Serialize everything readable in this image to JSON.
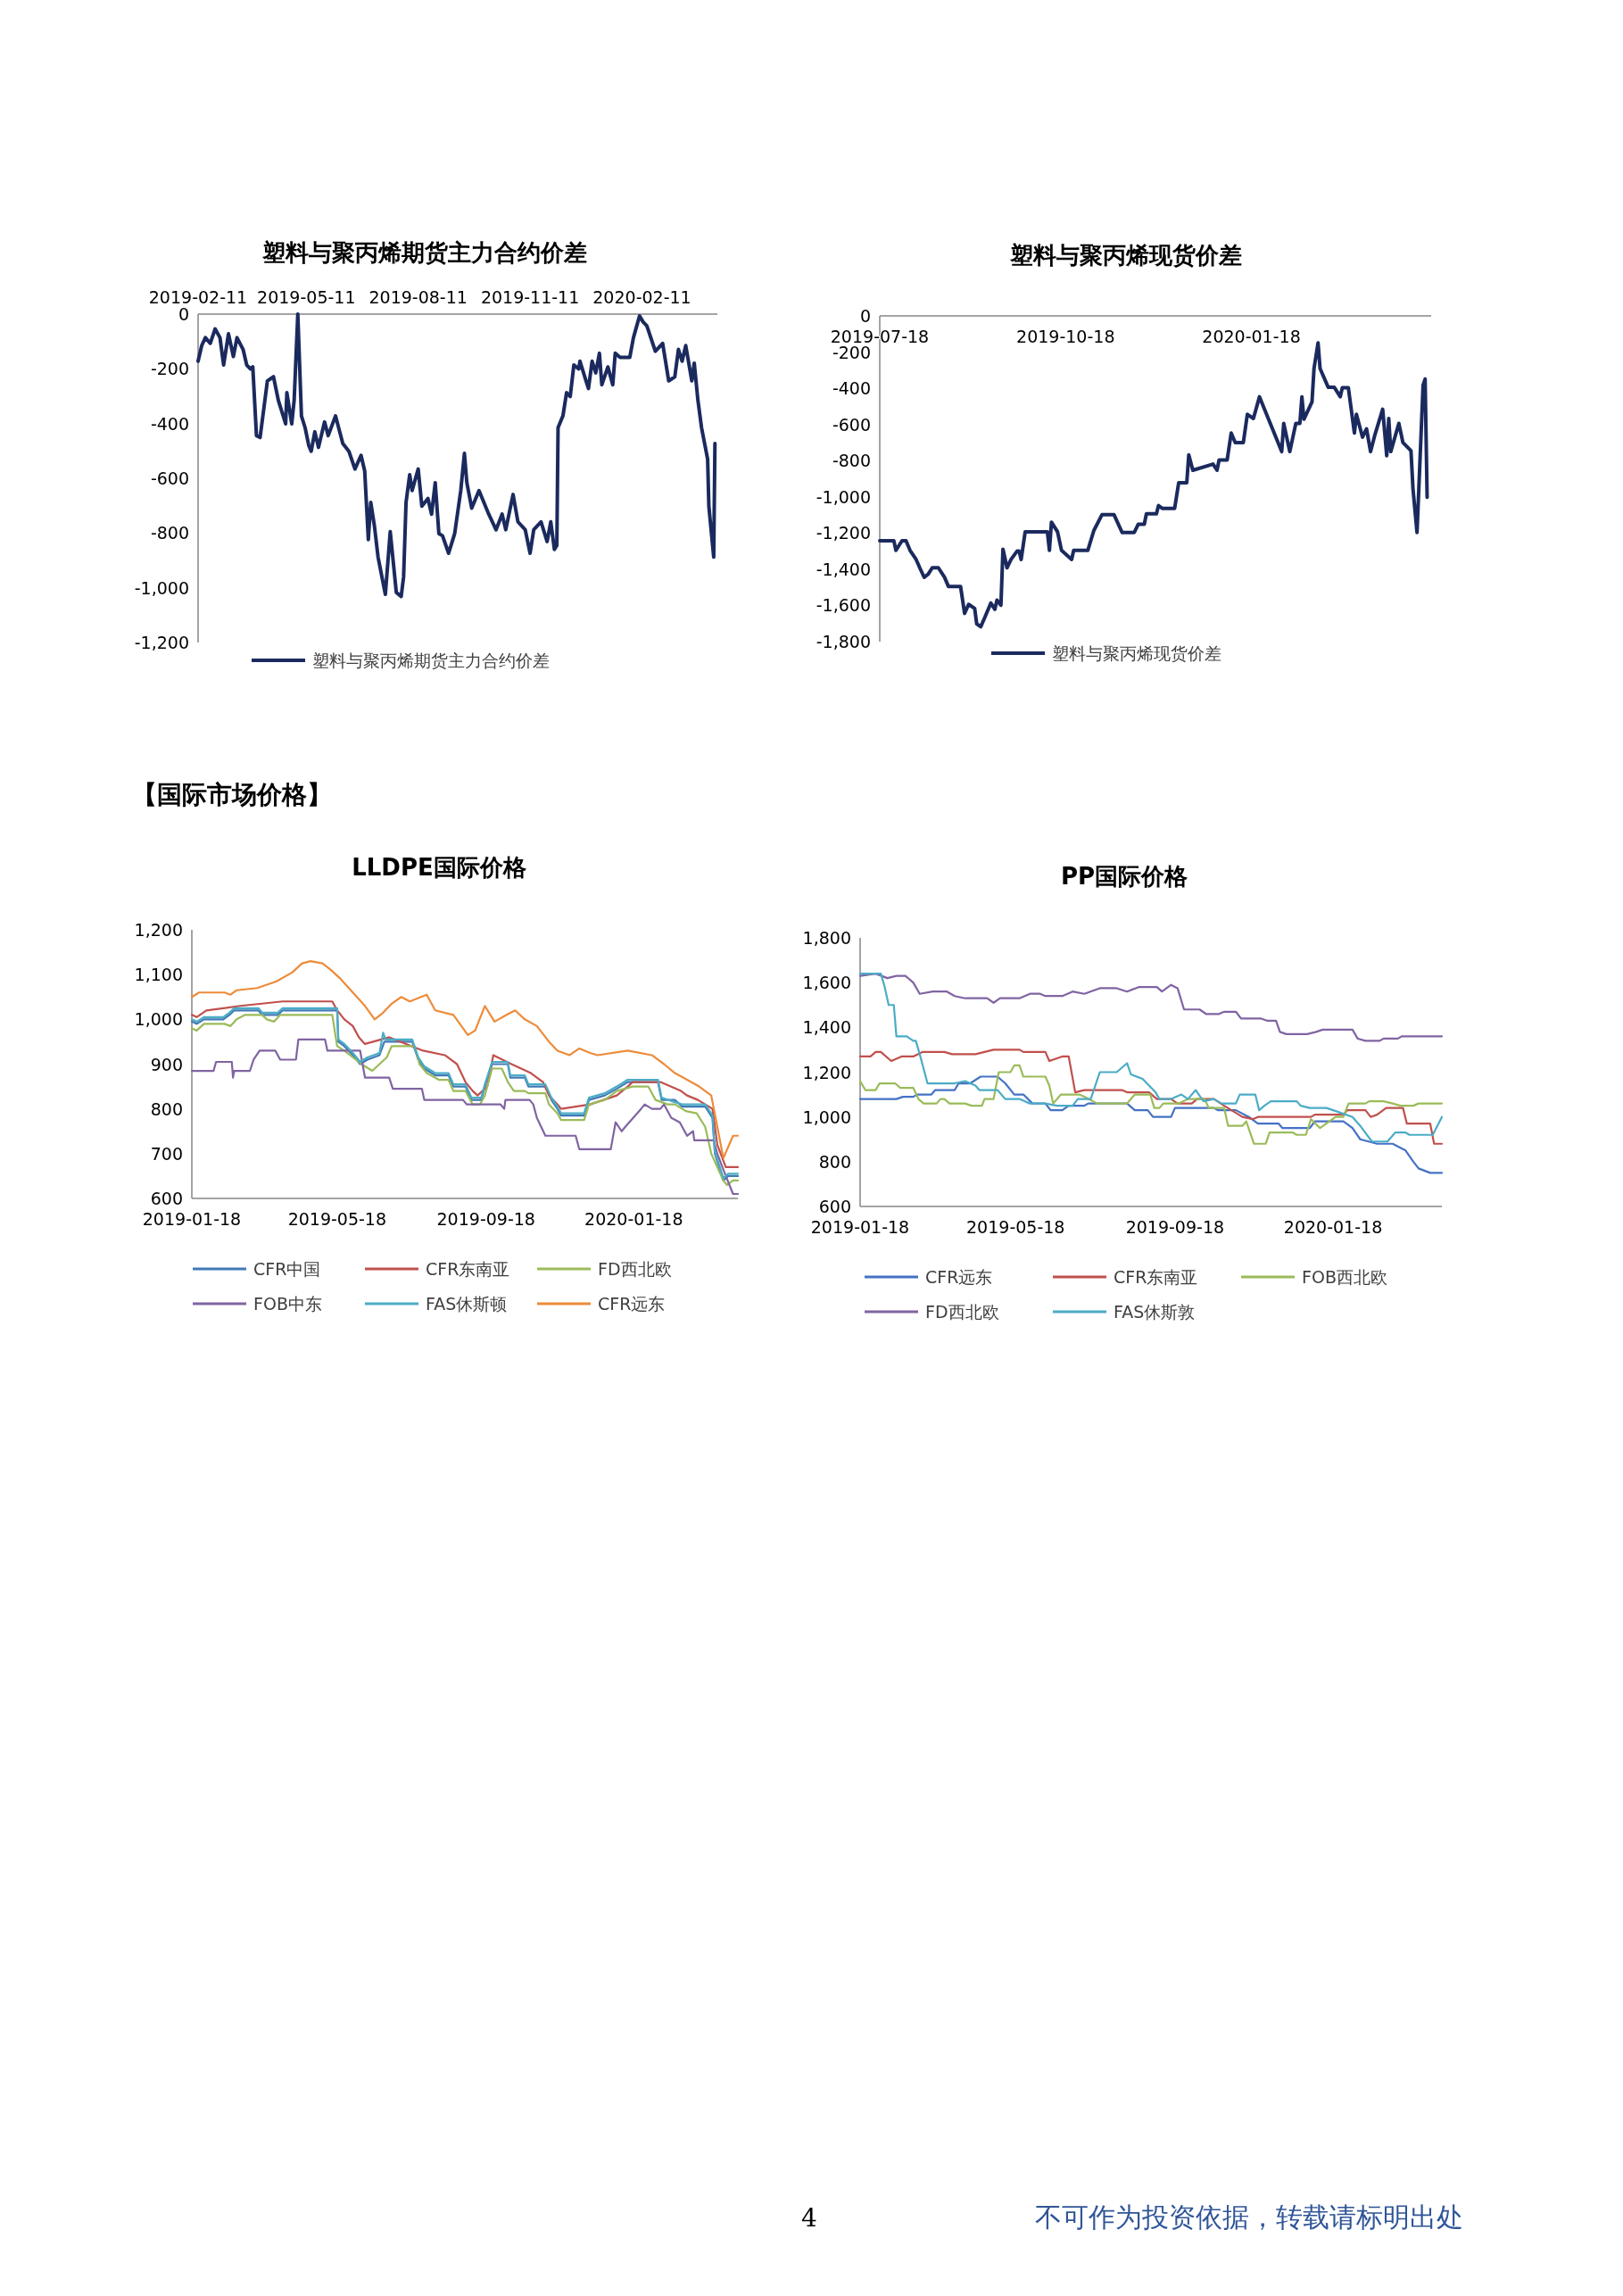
{
  "chart_data": [
    {
      "type": "line",
      "title": "塑料与聚丙烯期货主力合约价差",
      "legend": "bottom",
      "xlim": [
        "2019-02-11",
        "2020-04-13"
      ],
      "xticks": [
        "2019-02-11",
        "2019-05-11",
        "2019-08-11",
        "2019-11-11",
        "2020-02-11"
      ],
      "ylim": [
        -1200,
        0
      ],
      "yticks": [
        0,
        -200,
        -400,
        -600,
        -800,
        {
          "value": -1000,
          "label": "-1,000"
        },
        {
          "value": -1200,
          "label": "-1,200"
        }
      ],
      "series": [
        {
          "name": "塑料与聚丙烯期货主力合约价差",
          "color": "#1b2a5e",
          "x": [
            "2019-02-11",
            "2019-02-14",
            "2019-02-17",
            "2019-02-21",
            "2019-02-25",
            "2019-03-01",
            "2019-03-04",
            "2019-03-08",
            "2019-03-12",
            "2019-03-15",
            "2019-03-20",
            "2019-03-23",
            "2019-03-26",
            "2019-03-28",
            "2019-03-31",
            "2019-04-03",
            "2019-04-09",
            "2019-04-14",
            "2019-04-18",
            "2019-04-24",
            "2019-04-25",
            "2019-04-29",
            "2019-05-01",
            "2019-05-04",
            "2019-05-07",
            "2019-05-10",
            "2019-05-13",
            "2019-05-15",
            "2019-05-18",
            "2019-05-21",
            "2019-05-26",
            "2019-05-29",
            "2019-06-04",
            "2019-06-10",
            "2019-06-15",
            "2019-06-20",
            "2019-06-25",
            "2019-06-28",
            "2019-07-01",
            "2019-07-03",
            "2019-07-06",
            "2019-07-09",
            "2019-07-15",
            "2019-07-19",
            "2019-07-24",
            "2019-07-28",
            "2019-07-30",
            "2019-08-01",
            "2019-08-04",
            "2019-08-06",
            "2019-08-11",
            "2019-08-14",
            "2019-08-19",
            "2019-08-22",
            "2019-08-25",
            "2019-08-28",
            "2019-08-31",
            "2019-09-05",
            "2019-09-10",
            "2019-09-15",
            "2019-09-18",
            "2019-09-20",
            "2019-09-24",
            "2019-09-30",
            "2019-10-08",
            "2019-10-14",
            "2019-10-19",
            "2019-10-22",
            "2019-10-28",
            "2019-11-01",
            "2019-11-07",
            "2019-11-11",
            "2019-11-14",
            "2019-11-20",
            "2019-11-25",
            "2019-11-28",
            "2019-12-01",
            "2019-12-03",
            "2019-12-04",
            "2019-12-08",
            "2019-12-11",
            "2019-12-14",
            "2019-12-17",
            "2019-12-21",
            "2019-12-22",
            "2019-12-27",
            "2019-12-29",
            "2020-01-01",
            "2020-01-04",
            "2020-01-07",
            "2020-01-09",
            "2020-01-14",
            "2020-01-18",
            "2020-01-20",
            "2020-01-24",
            "2020-02-01",
            "2020-02-04",
            "2020-02-09",
            "2020-02-12",
            "2020-02-15",
            "2020-02-22",
            "2020-02-28",
            "2020-03-04",
            "2020-03-09",
            "2020-03-12",
            "2020-03-15",
            "2020-03-18",
            "2020-03-23",
            "2020-03-25",
            "2020-03-28",
            "2020-03-31",
            "2020-04-05",
            "2020-04-06",
            "2020-04-10",
            "2020-04-11"
          ],
          "values": [
            -172,
            -115,
            -86,
            -107,
            -54,
            -86,
            -186,
            -72,
            -155,
            -86,
            -129,
            -186,
            -200,
            -193,
            -444,
            -451,
            -244,
            -229,
            -315,
            -401,
            -287,
            -401,
            -315,
            0,
            -372,
            -415,
            -480,
            -501,
            -430,
            -487,
            -394,
            -444,
            -372,
            -473,
            -501,
            -566,
            -516,
            -573,
            -824,
            -688,
            -774,
            -888,
            -1024,
            -795,
            -1017,
            -1032,
            -960,
            -688,
            -587,
            -645,
            -566,
            -702,
            -674,
            -731,
            -616,
            -802,
            -810,
            -874,
            -802,
            -645,
            -509,
            -616,
            -709,
            -645,
            -731,
            -788,
            -731,
            -788,
            -659,
            -759,
            -788,
            -874,
            -788,
            -759,
            -831,
            -759,
            -860,
            -845,
            -415,
            -372,
            -287,
            -301,
            -186,
            -200,
            -172,
            -244,
            -272,
            -172,
            -215,
            -143,
            -258,
            -193,
            -258,
            -143,
            -158,
            -158,
            -86,
            -7,
            -29,
            -43,
            -136,
            -107,
            -244,
            -229,
            -129,
            -172,
            -115,
            -244,
            -179,
            -315,
            -415,
            -530,
            -702,
            -888,
            -473
          ]
        }
      ]
    },
    {
      "type": "line",
      "title": "塑料与聚丙烯现货价差",
      "legend": "bottom",
      "xlim": [
        "2019-07-18",
        "2020-04-16"
      ],
      "xticks": [
        "2019-07-18",
        "2019-10-18",
        "2020-01-18"
      ],
      "ylim": [
        -1800,
        0
      ],
      "yticks": [
        0,
        -200,
        -400,
        -600,
        -800,
        {
          "value": -1000,
          "label": "-1,000"
        },
        {
          "value": -1200,
          "label": "-1,200"
        },
        {
          "value": -1400,
          "label": "-1,400"
        },
        {
          "value": -1600,
          "label": "-1,600"
        },
        {
          "value": -1800,
          "label": "-1,800"
        }
      ],
      "series": [
        {
          "name": "塑料与聚丙烯现货价差",
          "color": "#1b2a5e",
          "x": [
            "2019-07-18",
            "2019-07-25",
            "2019-07-26",
            "2019-07-29",
            "2019-07-31",
            "2019-08-02",
            "2019-08-05",
            "2019-08-07",
            "2019-08-09",
            "2019-08-11",
            "2019-08-13",
            "2019-08-16",
            "2019-08-19",
            "2019-08-21",
            "2019-08-27",
            "2019-08-29",
            "2019-08-31",
            "2019-09-03",
            "2019-09-04",
            "2019-09-06",
            "2019-09-08",
            "2019-09-11",
            "2019-09-13",
            "2019-09-14",
            "2019-09-16",
            "2019-09-17",
            "2019-09-19",
            "2019-09-21",
            "2019-09-24",
            "2019-09-25",
            "2019-09-26",
            "2019-09-28",
            "2019-10-09",
            "2019-10-10",
            "2019-10-11",
            "2019-10-14",
            "2019-10-16",
            "2019-10-21",
            "2019-10-22",
            "2019-10-29",
            "2019-11-01",
            "2019-11-05",
            "2019-11-11",
            "2019-11-15",
            "2019-11-21",
            "2019-11-23",
            "2019-11-26",
            "2019-11-27",
            "2019-12-02",
            "2019-12-03",
            "2019-12-05",
            "2019-12-11",
            "2019-12-13",
            "2019-12-17",
            "2019-12-18",
            "2019-12-20",
            "2019-12-30",
            "2020-01-01",
            "2020-01-02",
            "2020-01-06",
            "2020-01-08",
            "2020-01-10",
            "2020-01-14",
            "2020-01-16",
            "2020-01-19",
            "2020-01-22",
            "2020-02-02",
            "2020-02-03",
            "2020-02-06",
            "2020-02-09",
            "2020-02-11",
            "2020-02-12",
            "2020-02-13",
            "2020-02-17",
            "2020-02-18",
            "2020-02-20",
            "2020-02-21",
            "2020-02-25",
            "2020-02-28",
            "2020-03-02",
            "2020-03-03",
            "2020-03-06",
            "2020-03-09",
            "2020-03-10",
            "2020-03-13",
            "2020-03-15",
            "2020-03-17",
            "2020-03-19",
            "2020-03-23",
            "2020-03-25",
            "2020-03-26",
            "2020-03-27",
            "2020-03-31",
            "2020-04-02",
            "2020-04-06",
            "2020-04-07",
            "2020-04-09",
            "2020-04-12",
            "2020-04-13",
            "2020-04-14"
          ],
          "values": [
            -1243,
            -1243,
            -1296,
            -1243,
            -1243,
            -1296,
            -1346,
            -1397,
            -1445,
            -1427,
            -1392,
            -1392,
            -1443,
            -1495,
            -1495,
            -1644,
            -1594,
            -1617,
            -1702,
            -1718,
            -1667,
            -1587,
            -1622,
            -1571,
            -1599,
            -1289,
            -1392,
            -1346,
            -1300,
            -1300,
            -1346,
            -1193,
            -1193,
            -1296,
            -1140,
            -1193,
            -1296,
            -1346,
            -1296,
            -1296,
            -1186,
            -1099,
            -1099,
            -1197,
            -1197,
            -1151,
            -1151,
            -1094,
            -1094,
            -1048,
            -1064,
            -1064,
            -922,
            -922,
            -768,
            -853,
            -819,
            -853,
            -796,
            -796,
            -647,
            -700,
            -700,
            -544,
            -567,
            -447,
            -750,
            -594,
            -750,
            -594,
            -594,
            -447,
            -571,
            -475,
            -291,
            -149,
            -291,
            -394,
            -394,
            -447,
            -397,
            -397,
            -647,
            -544,
            -670,
            -624,
            -750,
            -663,
            -516,
            -773,
            -567,
            -750,
            -594,
            -700,
            -745,
            -956,
            -1197,
            -383,
            -349,
            -1002
          ]
        }
      ]
    },
    {
      "type": "other",
      "annotations": [
        "【国际市场价格】"
      ]
    },
    {
      "type": "line",
      "title": "LLDPE国际价格",
      "legend": "bottom",
      "xlim": [
        "2019-01-18",
        "2020-04-13"
      ],
      "xticks": [
        "2019-01-18",
        "2019-05-18",
        "2019-09-18",
        "2020-01-18"
      ],
      "ylim": [
        600,
        1200
      ],
      "yticks": [
        600,
        700,
        800,
        900,
        {
          "value": 1000,
          "label": "1,000"
        },
        {
          "value": 1100,
          "label": "1,100"
        },
        {
          "value": 1200,
          "label": "1,200"
        }
      ],
      "series": [
        {
          "name": "CFR中国",
          "color": "#3f7ab5",
          "x": [
            "2019-01-18",
            "2019-01-22",
            "2019-01-28",
            "2019-02-13",
            "2019-02-18",
            "2019-02-22",
            "2019-03-14",
            "2019-03-17",
            "2019-03-30",
            "2019-04-03",
            "2019-05-18",
            "2019-05-19",
            "2019-05-24",
            "2019-05-31",
            "2019-06-06",
            "2019-06-12",
            "2019-06-22",
            "2019-06-26",
            "2019-07-19",
            "2019-07-24",
            "2019-07-29",
            "2019-08-07",
            "2019-08-18",
            "2019-08-22",
            "2019-09-01",
            "2019-09-06",
            "2019-09-14",
            "2019-09-17",
            "2019-09-23",
            "2019-10-06",
            "2019-10-08",
            "2019-10-20",
            "2019-10-23",
            "2019-11-06",
            "2019-11-11",
            "2019-11-16",
            "2019-11-19",
            "2019-12-08",
            "2019-12-12",
            "2019-12-25",
            "2020-01-04",
            "2020-01-13",
            "2020-02-07",
            "2020-02-10",
            "2020-02-21",
            "2020-02-27",
            "2020-03-17",
            "2020-03-23",
            "2020-03-25",
            "2020-04-01",
            "2020-04-05",
            "2020-04-13"
          ],
          "values": [
            995,
            990,
            1000,
            1000,
            1010,
            1020,
            1020,
            1010,
            1010,
            1020,
            1020,
            950,
            940,
            920,
            900,
            910,
            920,
            950,
            950,
            910,
            890,
            875,
            875,
            850,
            850,
            820,
            820,
            850,
            900,
            900,
            870,
            870,
            850,
            850,
            820,
            800,
            785,
            785,
            820,
            830,
            845,
            860,
            860,
            820,
            820,
            805,
            805,
            780,
            700,
            640,
            650,
            650
          ]
        },
        {
          "name": "CFR东南亚",
          "color": "#c0504d",
          "x": [
            "2019-01-18",
            "2019-01-22",
            "2019-01-30",
            "2019-02-27",
            "2019-04-03",
            "2019-05-14",
            "2019-05-18",
            "2019-05-24",
            "2019-05-31",
            "2019-06-05",
            "2019-06-10",
            "2019-06-30",
            "2019-07-28",
            "2019-08-15",
            "2019-08-25",
            "2019-09-01",
            "2019-09-07",
            "2019-09-11",
            "2019-09-19",
            "2019-09-24",
            "2019-10-09",
            "2019-10-25",
            "2019-11-04",
            "2019-11-09",
            "2019-11-16",
            "2019-11-19",
            "2019-12-13",
            "2020-01-04",
            "2020-01-13",
            "2020-01-17",
            "2020-02-09",
            "2020-02-26",
            "2020-03-02",
            "2020-03-11",
            "2020-03-17",
            "2020-03-23",
            "2020-03-27",
            "2020-04-03",
            "2020-04-13"
          ],
          "values": [
            1010,
            1005,
            1020,
            1030,
            1040,
            1040,
            1020,
            1000,
            985,
            960,
            945,
            960,
            930,
            920,
            900,
            860,
            840,
            830,
            850,
            920,
            900,
            880,
            860,
            830,
            810,
            800,
            810,
            830,
            850,
            860,
            860,
            840,
            830,
            820,
            810,
            800,
            720,
            670,
            670
          ]
        },
        {
          "name": "FD西北欧",
          "color": "#9bbb59",
          "x": [
            "2019-01-18",
            "2019-01-22",
            "2019-01-28",
            "2019-02-14",
            "2019-02-19",
            "2019-02-24",
            "2019-03-03",
            "2019-03-17",
            "2019-03-21",
            "2019-03-27",
            "2019-04-01",
            "2019-05-14",
            "2019-05-18",
            "2019-05-24",
            "2019-05-31",
            "2019-06-10",
            "2019-06-16",
            "2019-06-22",
            "2019-06-28",
            "2019-07-02",
            "2019-07-21",
            "2019-07-25",
            "2019-07-31",
            "2019-08-10",
            "2019-08-18",
            "2019-08-22",
            "2019-09-01",
            "2019-09-07",
            "2019-09-13",
            "2019-09-17",
            "2019-09-23",
            "2019-10-01",
            "2019-10-06",
            "2019-10-11",
            "2019-10-20",
            "2019-10-23",
            "2019-11-06",
            "2019-11-09",
            "2019-11-16",
            "2019-11-19",
            "2019-12-08",
            "2019-12-12",
            "2019-12-25",
            "2020-01-04",
            "2020-01-17",
            "2020-01-30",
            "2020-02-05",
            "2020-02-15",
            "2020-02-21",
            "2020-03-01",
            "2020-03-10",
            "2020-03-17",
            "2020-03-22",
            "2020-04-01",
            "2020-04-04",
            "2020-04-09",
            "2020-04-13"
          ],
          "values": [
            980,
            975,
            990,
            990,
            985,
            1000,
            1010,
            1010,
            1000,
            995,
            1010,
            1010,
            940,
            930,
            915,
            895,
            885,
            900,
            915,
            940,
            940,
            900,
            880,
            865,
            865,
            840,
            840,
            810,
            810,
            830,
            890,
            890,
            860,
            840,
            840,
            835,
            835,
            810,
            790,
            775,
            775,
            810,
            820,
            840,
            850,
            850,
            820,
            810,
            810,
            795,
            790,
            760,
            700,
            640,
            630,
            640,
            640
          ]
        },
        {
          "name": "FOB中东",
          "color": "#8064a2",
          "x": [
            "2019-01-18",
            "2019-02-05",
            "2019-02-07",
            "2019-02-20",
            "2019-02-21",
            "2019-02-22",
            "2019-03-07",
            "2019-03-10",
            "2019-03-15",
            "2019-03-28",
            "2019-04-01",
            "2019-04-14",
            "2019-04-16",
            "2019-05-08",
            "2019-05-10",
            "2019-06-06",
            "2019-06-08",
            "2019-06-10",
            "2019-06-30",
            "2019-07-03",
            "2019-07-27",
            "2019-07-29",
            "2019-08-30",
            "2019-09-02",
            "2019-09-30",
            "2019-10-03",
            "2019-10-04",
            "2019-10-24",
            "2019-10-27",
            "2019-10-30",
            "2019-11-06",
            "2019-12-01",
            "2019-12-04",
            "2019-12-30",
            "2020-01-03",
            "2020-01-08",
            "2020-01-11",
            "2020-01-24",
            "2020-01-27",
            "2020-02-02",
            "2020-02-09",
            "2020-02-12",
            "2020-02-18",
            "2020-02-25",
            "2020-03-02",
            "2020-03-07",
            "2020-03-08",
            "2020-03-24",
            "2020-03-27",
            "2020-04-03",
            "2020-04-09",
            "2020-04-13"
          ],
          "values": [
            885,
            885,
            905,
            905,
            870,
            885,
            885,
            910,
            930,
            930,
            910,
            910,
            955,
            955,
            930,
            930,
            900,
            870,
            870,
            845,
            845,
            820,
            820,
            810,
            810,
            800,
            820,
            820,
            810,
            780,
            740,
            740,
            710,
            710,
            770,
            750,
            760,
            800,
            810,
            800,
            800,
            810,
            780,
            770,
            740,
            750,
            730,
            730,
            700,
            650,
            610,
            610
          ]
        },
        {
          "name": "FAS休斯顿",
          "color": "#4bacc6",
          "x": [
            "2019-01-18",
            "2019-01-22",
            "2019-01-28",
            "2019-02-13",
            "2019-02-18",
            "2019-02-22",
            "2019-03-14",
            "2019-03-17",
            "2019-03-30",
            "2019-04-03",
            "2019-05-18",
            "2019-05-19",
            "2019-05-24",
            "2019-05-31",
            "2019-06-06",
            "2019-06-12",
            "2019-06-22",
            "2019-06-25",
            "2019-06-27",
            "2019-07-19",
            "2019-07-24",
            "2019-07-29",
            "2019-08-07",
            "2019-08-18",
            "2019-08-22",
            "2019-09-01",
            "2019-09-06",
            "2019-09-14",
            "2019-09-17",
            "2019-09-23",
            "2019-10-06",
            "2019-10-08",
            "2019-10-20",
            "2019-10-23",
            "2019-11-06",
            "2019-11-11",
            "2019-11-16",
            "2019-11-19",
            "2019-12-08",
            "2019-12-12",
            "2019-12-25",
            "2020-01-04",
            "2020-01-13",
            "2020-02-07",
            "2020-02-10",
            "2020-02-21",
            "2020-02-27",
            "2020-03-17",
            "2020-03-23",
            "2020-03-25",
            "2020-04-01",
            "2020-04-05",
            "2020-04-13"
          ],
          "values": [
            1000,
            995,
            1005,
            1005,
            1015,
            1025,
            1025,
            1015,
            1015,
            1025,
            1025,
            955,
            945,
            925,
            905,
            915,
            925,
            970,
            955,
            955,
            915,
            895,
            880,
            880,
            855,
            855,
            825,
            825,
            855,
            905,
            905,
            875,
            875,
            855,
            855,
            825,
            805,
            790,
            790,
            825,
            835,
            850,
            865,
            865,
            825,
            815,
            810,
            810,
            785,
            705,
            645,
            655,
            655
          ]
        },
        {
          "name": "CFR远东",
          "color": "#ed8b3a",
          "x": [
            "2019-01-18",
            "2019-01-24",
            "2019-02-14",
            "2019-02-19",
            "2019-02-24",
            "2019-03-13",
            "2019-03-29",
            "2019-04-11",
            "2019-04-19",
            "2019-04-26",
            "2019-05-06",
            "2019-05-13",
            "2019-05-21",
            "2019-05-31",
            "2019-06-10",
            "2019-06-18",
            "2019-06-25",
            "2019-07-02",
            "2019-07-10",
            "2019-07-17",
            "2019-07-31",
            "2019-08-07",
            "2019-08-22",
            "2019-09-03",
            "2019-09-09",
            "2019-09-17",
            "2019-09-25",
            "2019-10-05",
            "2019-10-12",
            "2019-10-20",
            "2019-10-30",
            "2019-11-09",
            "2019-11-16",
            "2019-11-26",
            "2019-12-04",
            "2019-12-13",
            "2019-12-19",
            "2020-01-13",
            "2020-02-02",
            "2020-02-12",
            "2020-02-21",
            "2020-03-02",
            "2020-03-12",
            "2020-03-22",
            "2020-03-27",
            "2020-04-01",
            "2020-04-09",
            "2020-04-13"
          ],
          "values": [
            1050,
            1060,
            1060,
            1055,
            1065,
            1070,
            1085,
            1105,
            1125,
            1130,
            1125,
            1110,
            1090,
            1060,
            1030,
            1000,
            1015,
            1035,
            1050,
            1040,
            1055,
            1020,
            1010,
            965,
            975,
            1030,
            995,
            1010,
            1020,
            1000,
            985,
            950,
            930,
            920,
            935,
            925,
            920,
            930,
            920,
            900,
            880,
            865,
            850,
            830,
            760,
            690,
            740,
            740
          ]
        }
      ]
    },
    {
      "type": "line",
      "title": "PP国际价格",
      "legend": "bottom",
      "xlim": [
        "2019-01-18",
        "2020-04-11"
      ],
      "xticks": [
        "2019-01-18",
        "2019-05-18",
        "2019-09-18",
        "2020-01-18"
      ],
      "ylim": [
        600,
        1800
      ],
      "yticks": [
        600,
        800,
        {
          "value": 1000,
          "label": "1,000"
        },
        {
          "value": 1200,
          "label": "1,200"
        },
        {
          "value": 1400,
          "label": "1,400"
        },
        {
          "value": 1600,
          "label": "1,600"
        },
        {
          "value": 1800,
          "label": "1,800"
        }
      ],
      "series": [
        {
          "name": "CFR远东",
          "color": "#4472c4",
          "x": [
            "2019-01-18",
            "2019-02-15",
            "2019-02-20",
            "2019-02-28",
            "2019-03-03",
            "2019-03-14",
            "2019-03-17",
            "2019-04-01",
            "2019-04-04",
            "2019-04-13",
            "2019-04-21",
            "2019-05-04",
            "2019-05-10",
            "2019-05-17",
            "2019-05-24",
            "2019-05-31",
            "2019-06-10",
            "2019-06-14",
            "2019-06-23",
            "2019-06-28",
            "2019-07-10",
            "2019-07-13",
            "2019-08-12",
            "2019-08-18",
            "2019-08-28",
            "2019-09-01",
            "2019-09-15",
            "2019-09-18",
            "2019-10-18",
            "2019-10-21",
            "2019-11-04",
            "2019-11-14",
            "2019-11-21",
            "2019-12-07",
            "2019-12-10",
            "2019-12-31",
            "2020-01-04",
            "2020-01-26",
            "2020-02-02",
            "2020-02-08",
            "2020-02-21",
            "2020-03-04",
            "2020-03-14",
            "2020-03-20",
            "2020-03-24",
            "2020-04-02",
            "2020-04-11"
          ],
          "values": [
            1080,
            1080,
            1090,
            1090,
            1100,
            1100,
            1120,
            1120,
            1150,
            1150,
            1180,
            1180,
            1150,
            1100,
            1100,
            1060,
            1060,
            1030,
            1030,
            1050,
            1050,
            1060,
            1060,
            1030,
            1030,
            1000,
            1000,
            1040,
            1040,
            1030,
            1030,
            1000,
            970,
            970,
            950,
            950,
            980,
            980,
            950,
            900,
            880,
            880,
            850,
            800,
            770,
            750,
            750
          ]
        },
        {
          "name": "CFR东南亚",
          "color": "#c0504d",
          "x": [
            "2019-01-18",
            "2019-01-26",
            "2019-01-30",
            "2019-02-03",
            "2019-02-11",
            "2019-02-19",
            "2019-02-28",
            "2019-03-07",
            "2019-03-24",
            "2019-03-30",
            "2019-04-17",
            "2019-05-01",
            "2019-05-21",
            "2019-05-24",
            "2019-06-10",
            "2019-06-13",
            "2019-06-23",
            "2019-06-28",
            "2019-07-03",
            "2019-07-10",
            "2019-08-08",
            "2019-08-12",
            "2019-08-29",
            "2019-09-04",
            "2019-09-15",
            "2019-09-20",
            "2019-10-01",
            "2019-10-05",
            "2019-10-18",
            "2019-10-26",
            "2019-11-09",
            "2019-11-17",
            "2019-11-21",
            "2020-01-01",
            "2020-01-04",
            "2020-01-26",
            "2020-01-29",
            "2020-02-12",
            "2020-02-16",
            "2020-02-21",
            "2020-02-28",
            "2020-03-12",
            "2020-03-15",
            "2020-04-02",
            "2020-04-05",
            "2020-04-11"
          ],
          "values": [
            1270,
            1270,
            1290,
            1290,
            1250,
            1270,
            1270,
            1290,
            1290,
            1280,
            1280,
            1300,
            1300,
            1290,
            1290,
            1250,
            1270,
            1270,
            1110,
            1120,
            1120,
            1110,
            1110,
            1080,
            1080,
            1060,
            1060,
            1080,
            1080,
            1050,
            1000,
            990,
            1000,
            1000,
            1010,
            1010,
            1030,
            1030,
            1000,
            1010,
            1040,
            1040,
            970,
            970,
            880,
            880
          ]
        },
        {
          "name": "FOB西北欧",
          "color": "#9bbb59",
          "x": [
            "2019-01-18",
            "2019-01-22",
            "2019-01-30",
            "2019-02-02",
            "2019-02-14",
            "2019-02-18",
            "2019-02-28",
            "2019-03-04",
            "2019-03-08",
            "2019-03-18",
            "2019-03-21",
            "2019-03-24",
            "2019-03-28",
            "2019-04-09",
            "2019-04-14",
            "2019-04-22",
            "2019-04-24",
            "2019-05-01",
            "2019-05-05",
            "2019-05-14",
            "2019-05-17",
            "2019-05-21",
            "2019-05-24",
            "2019-06-10",
            "2019-06-13",
            "2019-06-16",
            "2019-06-22",
            "2019-07-06",
            "2019-07-10",
            "2019-07-20",
            "2019-08-12",
            "2019-08-18",
            "2019-08-30",
            "2019-09-02",
            "2019-09-06",
            "2019-09-09",
            "2019-09-21",
            "2019-09-28",
            "2019-10-11",
            "2019-10-14",
            "2019-10-26",
            "2019-10-29",
            "2019-11-09",
            "2019-11-12",
            "2019-11-18",
            "2019-11-27",
            "2019-11-30",
            "2019-12-18",
            "2019-12-21",
            "2019-12-28",
            "2020-01-01",
            "2020-01-08",
            "2020-01-20",
            "2020-01-26",
            "2020-01-30",
            "2020-02-12",
            "2020-02-15",
            "2020-02-26",
            "2020-03-04",
            "2020-03-10",
            "2020-03-20",
            "2020-03-24",
            "2020-04-11"
          ],
          "values": [
            1160,
            1120,
            1120,
            1150,
            1150,
            1130,
            1130,
            1080,
            1060,
            1060,
            1080,
            1080,
            1060,
            1060,
            1050,
            1050,
            1080,
            1080,
            1200,
            1200,
            1230,
            1230,
            1180,
            1180,
            1140,
            1060,
            1100,
            1100,
            1090,
            1060,
            1060,
            1100,
            1100,
            1040,
            1040,
            1060,
            1060,
            1080,
            1080,
            1040,
            1040,
            960,
            960,
            980,
            880,
            880,
            930,
            930,
            920,
            920,
            990,
            950,
            1000,
            1000,
            1060,
            1060,
            1070,
            1070,
            1060,
            1050,
            1050,
            1060,
            1060
          ]
        },
        {
          "name": "FD西北欧",
          "color": "#8064a2",
          "x": [
            "2019-01-18",
            "2019-01-30",
            "2019-02-08",
            "2019-02-15",
            "2019-02-22",
            "2019-02-28",
            "2019-03-05",
            "2019-03-15",
            "2019-03-26",
            "2019-04-01",
            "2019-04-09",
            "2019-04-26",
            "2019-05-01",
            "2019-05-06",
            "2019-05-21",
            "2019-05-29",
            "2019-06-06",
            "2019-06-10",
            "2019-06-23",
            "2019-07-01",
            "2019-07-10",
            "2019-07-22",
            "2019-08-04",
            "2019-08-12",
            "2019-08-21",
            "2019-09-04",
            "2019-09-08",
            "2019-09-15",
            "2019-09-20",
            "2019-09-25",
            "2019-10-07",
            "2019-10-12",
            "2019-10-22",
            "2019-10-26",
            "2019-11-04",
            "2019-11-08",
            "2019-11-23",
            "2019-11-28",
            "2019-12-05",
            "2019-12-08",
            "2019-12-13",
            "2019-12-29",
            "2020-01-05",
            "2020-01-10",
            "2020-02-02",
            "2020-02-06",
            "2020-02-12",
            "2020-02-23",
            "2020-02-26",
            "2020-03-08",
            "2020-03-11",
            "2020-04-11"
          ],
          "values": [
            1630,
            1640,
            1620,
            1630,
            1630,
            1600,
            1550,
            1560,
            1560,
            1540,
            1530,
            1530,
            1510,
            1530,
            1530,
            1550,
            1550,
            1540,
            1540,
            1560,
            1550,
            1575,
            1575,
            1560,
            1580,
            1580,
            1560,
            1590,
            1575,
            1480,
            1480,
            1460,
            1460,
            1470,
            1470,
            1440,
            1440,
            1430,
            1430,
            1380,
            1370,
            1370,
            1380,
            1390,
            1390,
            1350,
            1340,
            1340,
            1350,
            1350,
            1360,
            1360
          ]
        },
        {
          "name": "FAS休斯敦",
          "color": "#4bacc6",
          "x": [
            "2019-01-18",
            "2019-02-03",
            "2019-02-06",
            "2019-02-09",
            "2019-02-13",
            "2019-02-15",
            "2019-02-23",
            "2019-02-28",
            "2019-03-02",
            "2019-03-05",
            "2019-03-11",
            "2019-04-01",
            "2019-04-09",
            "2019-04-17",
            "2019-04-20",
            "2019-05-04",
            "2019-05-10",
            "2019-05-21",
            "2019-05-29",
            "2019-06-10",
            "2019-06-19",
            "2019-07-01",
            "2019-07-05",
            "2019-07-15",
            "2019-07-22",
            "2019-08-04",
            "2019-08-12",
            "2019-08-15",
            "2019-08-24",
            "2019-09-03",
            "2019-09-06",
            "2019-09-15",
            "2019-09-23",
            "2019-09-28",
            "2019-10-04",
            "2019-10-10",
            "2019-10-18",
            "2019-10-24",
            "2019-11-04",
            "2019-11-07",
            "2019-11-19",
            "2019-11-22",
            "2019-11-26",
            "2019-12-01",
            "2019-12-21",
            "2019-12-24",
            "2019-12-31",
            "2020-01-13",
            "2020-01-23",
            "2020-02-02",
            "2020-02-08",
            "2020-02-17",
            "2020-02-29",
            "2020-03-06",
            "2020-03-14",
            "2020-03-17",
            "2020-04-04",
            "2020-04-11"
          ],
          "values": [
            1640,
            1640,
            1580,
            1500,
            1500,
            1360,
            1360,
            1340,
            1340,
            1280,
            1150,
            1150,
            1160,
            1140,
            1120,
            1120,
            1080,
            1080,
            1060,
            1060,
            1050,
            1050,
            1080,
            1080,
            1200,
            1200,
            1240,
            1190,
            1170,
            1110,
            1080,
            1080,
            1100,
            1080,
            1120,
            1070,
            1080,
            1060,
            1060,
            1100,
            1100,
            1030,
            1050,
            1070,
            1070,
            1050,
            1040,
            1040,
            1020,
            1000,
            960,
            890,
            890,
            930,
            930,
            920,
            920,
            1000
          ]
        }
      ]
    },
    {
      "type": "other",
      "annotations": [
        "4",
        "不可作为投资依据，转载请标明出处"
      ]
    }
  ]
}
